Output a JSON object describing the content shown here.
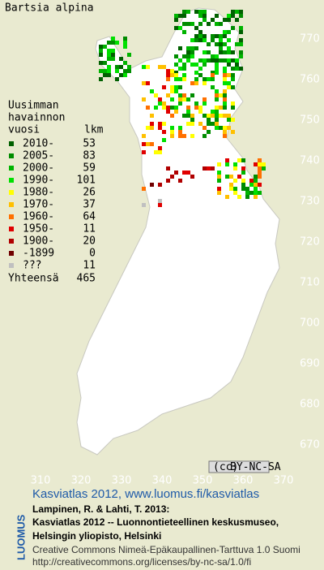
{
  "title": "Bartsia alpina",
  "legend": {
    "heading": [
      "Uusimman",
      "havainnon",
      "vuosi"
    ],
    "count_heading": "lkm",
    "rows": [
      {
        "label": "2010-",
        "count": 53,
        "color": "#006000"
      },
      {
        "label": "2005-",
        "count": 83,
        "color": "#008c00"
      },
      {
        "label": "2000-",
        "count": 59,
        "color": "#00b400"
      },
      {
        "label": "1990-",
        "count": 101,
        "color": "#00e000"
      },
      {
        "label": "1980-",
        "count": 26,
        "color": "#ffff00"
      },
      {
        "label": "1970-",
        "count": 37,
        "color": "#ffc000"
      },
      {
        "label": "1960-",
        "count": 64,
        "color": "#ff7000"
      },
      {
        "label": "1950-",
        "count": 11,
        "color": "#e00000"
      },
      {
        "label": "1900-",
        "count": 20,
        "color": "#b00000"
      },
      {
        "label": "-1899",
        "count": 0,
        "color": "#700000"
      },
      {
        "label": "???",
        "count": 11,
        "color": "#c0c0c0"
      }
    ],
    "total_label": "Yhteensä",
    "total": 465
  },
  "map": {
    "yticks": [
      770,
      760,
      750,
      740,
      730,
      720,
      710,
      700,
      690,
      680,
      670
    ],
    "xticks": [
      310,
      320,
      330,
      340,
      350,
      360,
      370
    ]
  },
  "badge": "BY-NC-SA",
  "footer": {
    "brand": "LUOMUS",
    "link": "Kasviatlas 2012, www.luomus.fi/kasviatlas",
    "citation": [
      "Lampinen, R. & Lahti, T. 2013:",
      "Kasviatlas 2012 -- Luonnontieteellinen keskusmuseo,",
      "Helsingin yliopisto, Helsinki"
    ],
    "license": [
      "Creative Commons Nimeä-Epäkaupallinen-Tarttuva 1.0 Suomi",
      "http://creativecommons.org/licenses/by-nc-sa/1.0/fi"
    ]
  }
}
